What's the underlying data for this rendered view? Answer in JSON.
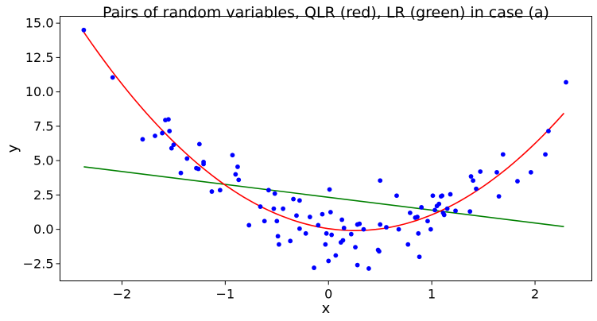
{
  "chart_data": {
    "type": "scatter",
    "title": "Pairs of random variables, QLR (red), LR (green) in case (a)",
    "xlabel": "x",
    "ylabel": "y",
    "xlim": [
      -2.6,
      2.55
    ],
    "ylim": [
      -3.75,
      15.5
    ],
    "x_ticks": [
      -2,
      -1,
      0,
      1,
      2
    ],
    "x_tick_labels": [
      "−2",
      "−1",
      "0",
      "1",
      "2"
    ],
    "y_ticks": [
      -2.5,
      0.0,
      2.5,
      5.0,
      7.5,
      10.0,
      12.5,
      15.0
    ],
    "y_tick_labels": [
      "−2.5",
      "0.0",
      "2.5",
      "5.0",
      "7.5",
      "10.0",
      "12.5",
      "15.0"
    ],
    "grid": false,
    "colors": {
      "points": "#0000ff",
      "qlr": "#ff0000",
      "lr": "#008000"
    },
    "points": [
      [
        -2.37,
        14.5
      ],
      [
        -2.09,
        11.05
      ],
      [
        -1.8,
        6.55
      ],
      [
        -1.68,
        6.8
      ],
      [
        -1.61,
        7.0
      ],
      [
        -1.58,
        7.95
      ],
      [
        -1.55,
        8.0
      ],
      [
        -1.54,
        7.15
      ],
      [
        -1.52,
        5.9
      ],
      [
        -1.5,
        6.15
      ],
      [
        -1.43,
        4.1
      ],
      [
        -1.37,
        5.15
      ],
      [
        -1.28,
        4.45
      ],
      [
        -1.26,
        4.4
      ],
      [
        -1.25,
        6.2
      ],
      [
        -1.21,
        4.9
      ],
      [
        -1.21,
        4.75
      ],
      [
        -1.13,
        2.75
      ],
      [
        -1.05,
        2.85
      ],
      [
        -0.93,
        5.4
      ],
      [
        -0.9,
        4.0
      ],
      [
        -0.88,
        4.55
      ],
      [
        -0.87,
        3.6
      ],
      [
        -0.77,
        0.3
      ],
      [
        -0.66,
        1.65
      ],
      [
        -0.62,
        0.6
      ],
      [
        -0.58,
        2.85
      ],
      [
        -0.53,
        1.5
      ],
      [
        -0.52,
        2.6
      ],
      [
        -0.5,
        0.6
      ],
      [
        -0.49,
        -0.5
      ],
      [
        -0.48,
        -1.1
      ],
      [
        -0.44,
        1.5
      ],
      [
        -0.37,
        -0.85
      ],
      [
        -0.34,
        2.2
      ],
      [
        -0.31,
        1.0
      ],
      [
        -0.28,
        2.1
      ],
      [
        -0.28,
        0.05
      ],
      [
        -0.22,
        -0.3
      ],
      [
        -0.18,
        0.9
      ],
      [
        -0.14,
        -2.8
      ],
      [
        -0.1,
        0.3
      ],
      [
        -0.06,
        1.1
      ],
      [
        -0.03,
        -1.1
      ],
      [
        -0.02,
        -0.3
      ],
      [
        0.0,
        -2.3
      ],
      [
        0.01,
        2.9
      ],
      [
        0.02,
        1.25
      ],
      [
        0.03,
        -0.4
      ],
      [
        0.07,
        -1.9
      ],
      [
        0.12,
        -0.95
      ],
      [
        0.13,
        0.7
      ],
      [
        0.14,
        -0.8
      ],
      [
        0.15,
        0.1
      ],
      [
        0.22,
        -0.35
      ],
      [
        0.26,
        -1.3
      ],
      [
        0.28,
        0.35
      ],
      [
        0.28,
        -2.6
      ],
      [
        0.3,
        0.4
      ],
      [
        0.34,
        0.0
      ],
      [
        0.39,
        -2.85
      ],
      [
        0.48,
        -1.5
      ],
      [
        0.49,
        -1.6
      ],
      [
        0.5,
        3.55
      ],
      [
        0.5,
        0.35
      ],
      [
        0.56,
        0.15
      ],
      [
        0.66,
        2.45
      ],
      [
        0.68,
        0.0
      ],
      [
        0.77,
        -1.1
      ],
      [
        0.79,
        1.2
      ],
      [
        0.84,
        0.85
      ],
      [
        0.86,
        0.9
      ],
      [
        0.87,
        -0.3
      ],
      [
        0.88,
        -2.0
      ],
      [
        0.9,
        1.6
      ],
      [
        0.96,
        0.6
      ],
      [
        0.99,
        0.0
      ],
      [
        1.01,
        2.45
      ],
      [
        1.03,
        1.4
      ],
      [
        1.05,
        1.7
      ],
      [
        1.07,
        1.85
      ],
      [
        1.09,
        2.4
      ],
      [
        1.1,
        2.45
      ],
      [
        1.11,
        1.2
      ],
      [
        1.12,
        1.05
      ],
      [
        1.15,
        1.5
      ],
      [
        1.18,
        2.55
      ],
      [
        1.23,
        1.35
      ],
      [
        1.37,
        1.3
      ],
      [
        1.38,
        3.85
      ],
      [
        1.4,
        3.55
      ],
      [
        1.43,
        2.95
      ],
      [
        1.47,
        4.2
      ],
      [
        1.63,
        4.15
      ],
      [
        1.65,
        2.4
      ],
      [
        1.69,
        5.45
      ],
      [
        1.83,
        3.5
      ],
      [
        1.96,
        4.15
      ],
      [
        2.1,
        5.45
      ],
      [
        2.13,
        7.15
      ],
      [
        2.3,
        10.7
      ]
    ],
    "qlr_curve": {
      "a": 2.09,
      "b": -1.08,
      "c": 0.05,
      "x_range": [
        -2.37,
        2.28
      ]
    },
    "lr_line": {
      "x": [
        -2.37,
        2.28
      ],
      "y": [
        4.55,
        0.2
      ]
    }
  }
}
